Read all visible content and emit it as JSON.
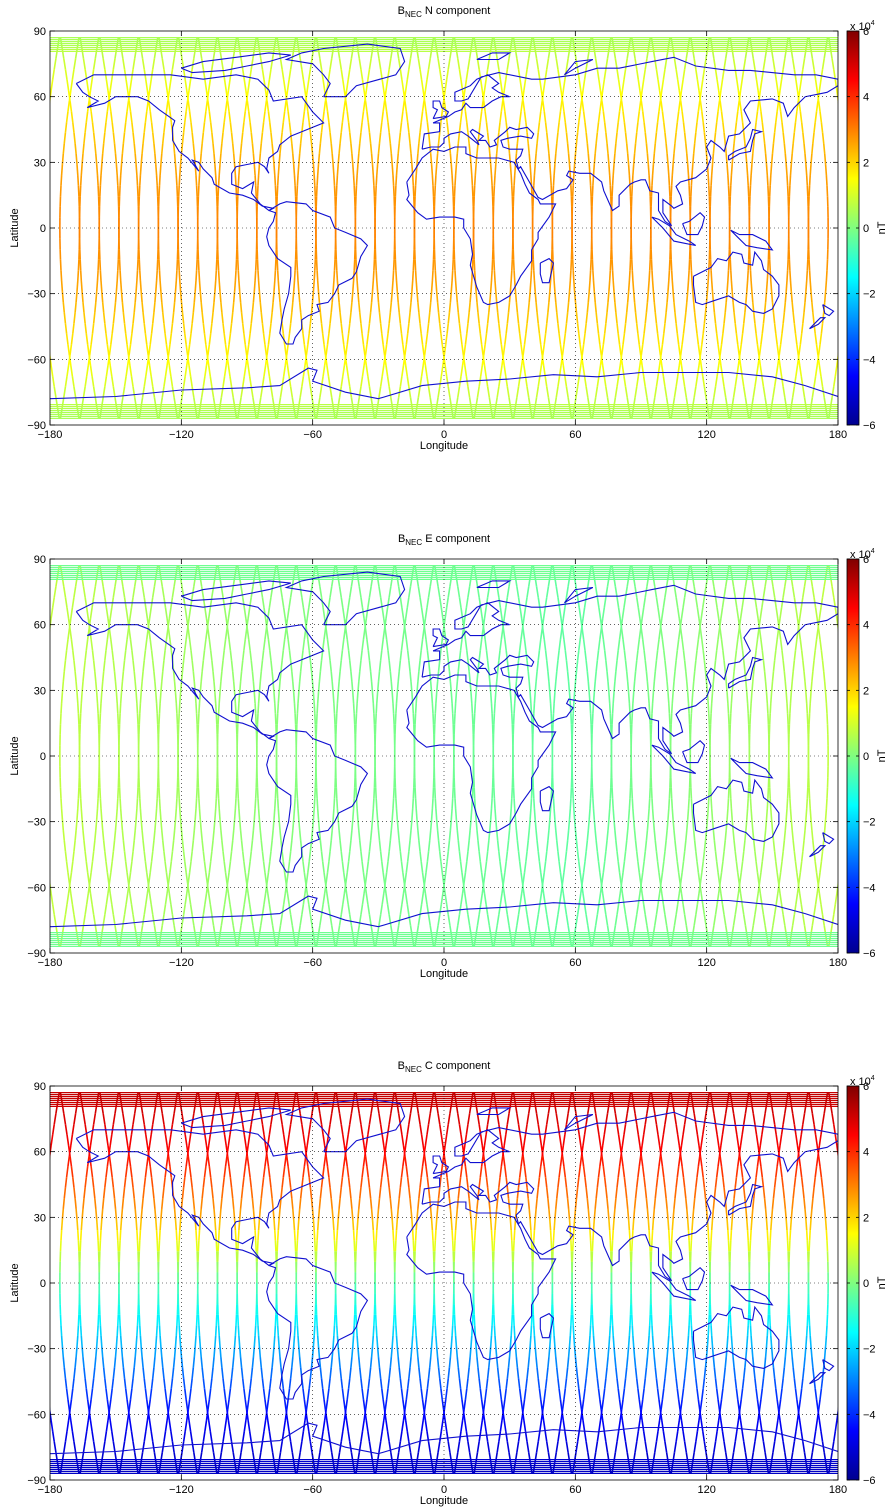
{
  "figure": {
    "panels": [
      {
        "title_main": "B",
        "title_sub": "NEC",
        "title_rest": " N component",
        "xlabel": "Longitude",
        "ylabel": "Latitude",
        "colorbar_label": "nT",
        "colorbar_exponent_base": "x 10",
        "colorbar_exponent_power": "4"
      },
      {
        "title_main": "B",
        "title_sub": "NEC",
        "title_rest": " E component",
        "xlabel": "Longitude",
        "ylabel": "Latitude",
        "colorbar_label": "nT",
        "colorbar_exponent_base": "x 10",
        "colorbar_exponent_power": "4"
      },
      {
        "title_main": "B",
        "title_sub": "NEC",
        "title_rest": " C component",
        "xlabel": "Longitude",
        "ylabel": "Latitude",
        "colorbar_label": "nT",
        "colorbar_exponent_base": "x 10",
        "colorbar_exponent_power": "4"
      }
    ]
  },
  "chart_data": [
    {
      "type": "scatter",
      "title": "B_NEC N component",
      "xlabel": "Longitude",
      "ylabel": "Latitude",
      "xlim": [
        -180,
        180
      ],
      "ylim": [
        -90,
        90
      ],
      "xticks": [
        -180,
        -120,
        -60,
        0,
        60,
        120,
        180
      ],
      "yticks": [
        -90,
        -60,
        -30,
        0,
        30,
        60,
        90
      ],
      "colorbar": {
        "label": "nT",
        "range": [
          -6,
          6
        ],
        "ticks": [
          -6,
          -4,
          -2,
          0,
          2,
          4,
          6
        ],
        "multiplier": "x 10^4",
        "colormap": "jet"
      },
      "grid": true,
      "coastlines": true,
      "orbit_tracks": 40,
      "value_samples": [
        {
          "lat": 85,
          "value": 0.5
        },
        {
          "lat": 60,
          "value": 1.5
        },
        {
          "lat": 30,
          "value": 2.5
        },
        {
          "lat": 0,
          "value": 3
        },
        {
          "lat": -30,
          "value": 2.5
        },
        {
          "lat": -60,
          "value": 1.5
        },
        {
          "lat": -85,
          "value": 0.5
        }
      ]
    },
    {
      "type": "scatter",
      "title": "B_NEC E component",
      "xlabel": "Longitude",
      "ylabel": "Latitude",
      "xlim": [
        -180,
        180
      ],
      "ylim": [
        -90,
        90
      ],
      "xticks": [
        -180,
        -120,
        -60,
        0,
        60,
        120,
        180
      ],
      "yticks": [
        -90,
        -60,
        -30,
        0,
        30,
        60,
        90
      ],
      "colorbar": {
        "label": "nT",
        "range": [
          -6,
          6
        ],
        "ticks": [
          -6,
          -4,
          -2,
          0,
          2,
          4,
          6
        ],
        "multiplier": "x 10^4",
        "colormap": "jet"
      },
      "grid": true,
      "coastlines": true,
      "orbit_tracks": 40,
      "value_samples": [
        {
          "lon": -180,
          "value": 0.8
        },
        {
          "lon": -60,
          "value": 0
        },
        {
          "lon": 60,
          "value": -0.4
        },
        {
          "lon": 180,
          "value": 0.8
        }
      ]
    },
    {
      "type": "scatter",
      "title": "B_NEC C component",
      "xlabel": "Longitude",
      "ylabel": "Latitude",
      "xlim": [
        -180,
        180
      ],
      "ylim": [
        -90,
        90
      ],
      "xticks": [
        -180,
        -120,
        -60,
        0,
        60,
        120,
        180
      ],
      "yticks": [
        -90,
        -60,
        -30,
        0,
        30,
        60,
        90
      ],
      "colorbar": {
        "label": "nT",
        "range": [
          -6,
          6
        ],
        "ticks": [
          -6,
          -4,
          -2,
          0,
          2,
          4,
          6
        ],
        "multiplier": "x 10^4",
        "colormap": "jet"
      },
      "grid": true,
      "coastlines": true,
      "orbit_tracks": 40,
      "value_samples": [
        {
          "lat": 85,
          "value": 5.2
        },
        {
          "lat": 60,
          "value": 4.5
        },
        {
          "lat": 30,
          "value": 2.5
        },
        {
          "lat": 0,
          "value": -0.5
        },
        {
          "lat": -30,
          "value": -2.5
        },
        {
          "lat": -60,
          "value": -4.5
        },
        {
          "lat": -85,
          "value": -5.2
        }
      ]
    }
  ]
}
